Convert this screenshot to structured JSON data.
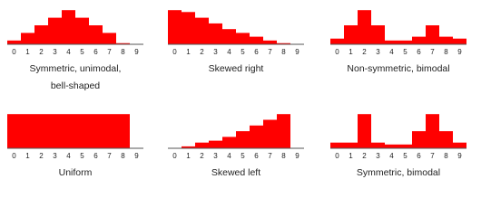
{
  "chart_data": [
    {
      "type": "bar",
      "title": "Symmetric, unimodal, bell-shaped",
      "categories": [
        "0",
        "1",
        "2",
        "3",
        "4",
        "5",
        "6",
        "7",
        "8",
        "9"
      ],
      "values": [
        1,
        3,
        5,
        7,
        9,
        7,
        5,
        3,
        0.3,
        0
      ],
      "color": "#ff0000",
      "ylim": [
        0,
        10
      ]
    },
    {
      "type": "bar",
      "title": "Skewed right",
      "categories": [
        "0",
        "1",
        "2",
        "3",
        "4",
        "5",
        "6",
        "7",
        "8",
        "9"
      ],
      "values": [
        9,
        8.5,
        7,
        5.5,
        4,
        3,
        2,
        1,
        0.3,
        0
      ],
      "color": "#ff0000",
      "ylim": [
        0,
        10
      ]
    },
    {
      "type": "bar",
      "title": "Non-symmetric, bimodal",
      "categories": [
        "0",
        "1",
        "2",
        "3",
        "4",
        "5",
        "6",
        "7",
        "8",
        "9"
      ],
      "values": [
        1.5,
        5,
        9,
        5,
        1,
        1,
        2,
        5,
        2,
        1.5
      ],
      "color": "#ff0000",
      "ylim": [
        0,
        10
      ]
    },
    {
      "type": "bar",
      "title": "Uniform",
      "categories": [
        "0",
        "1",
        "2",
        "3",
        "4",
        "5",
        "6",
        "7",
        "8",
        "9"
      ],
      "values": [
        9,
        9,
        9,
        9,
        9,
        9,
        9,
        9,
        9,
        0
      ],
      "color": "#ff0000",
      "ylim": [
        0,
        10
      ]
    },
    {
      "type": "bar",
      "title": "Skewed left",
      "categories": [
        "0",
        "1",
        "2",
        "3",
        "4",
        "5",
        "6",
        "7",
        "8",
        "9"
      ],
      "values": [
        0,
        0.5,
        1.5,
        2,
        3,
        4.5,
        6,
        7.5,
        9,
        0
      ],
      "color": "#ff0000",
      "ylim": [
        0,
        10
      ]
    },
    {
      "type": "bar",
      "title": "Symmetric, bimodal",
      "categories": [
        "0",
        "1",
        "2",
        "3",
        "4",
        "5",
        "6",
        "7",
        "8",
        "9"
      ],
      "values": [
        1.5,
        1.5,
        9,
        1.5,
        1,
        1,
        4.5,
        9,
        4.5,
        1.5
      ],
      "color": "#ff0000",
      "ylim": [
        0,
        10
      ]
    }
  ]
}
